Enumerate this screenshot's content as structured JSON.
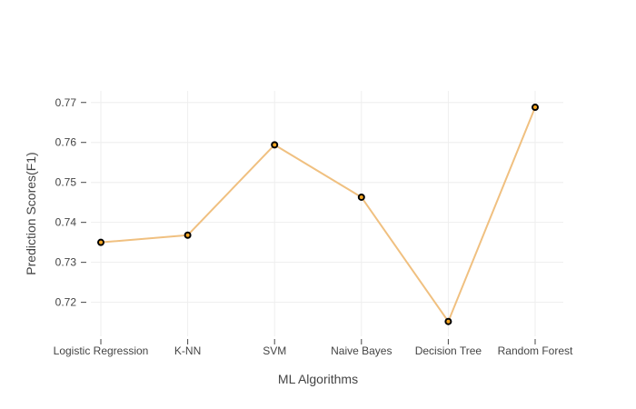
{
  "chart_data": {
    "type": "line",
    "title": "",
    "xlabel": "ML Algorithms",
    "ylabel": "Prediction Scores(F1)",
    "categories": [
      "Logistic Regression",
      "K-NN",
      "SVM",
      "Naive Bayes",
      "Decision Tree",
      "Random Forest"
    ],
    "series": [
      {
        "name": "",
        "values": [
          0.735,
          0.7368,
          0.7594,
          0.7463,
          0.7152,
          0.7688
        ]
      }
    ],
    "ylim": [
      0.7115,
      0.7729
    ],
    "yticks": [
      "0.72",
      "0.73",
      "0.74",
      "0.75",
      "0.76",
      "0.77"
    ],
    "grid": true,
    "colors": {
      "line": "#f0c080",
      "marker_fill": "#f5a623",
      "marker_edge": "#000000"
    }
  }
}
